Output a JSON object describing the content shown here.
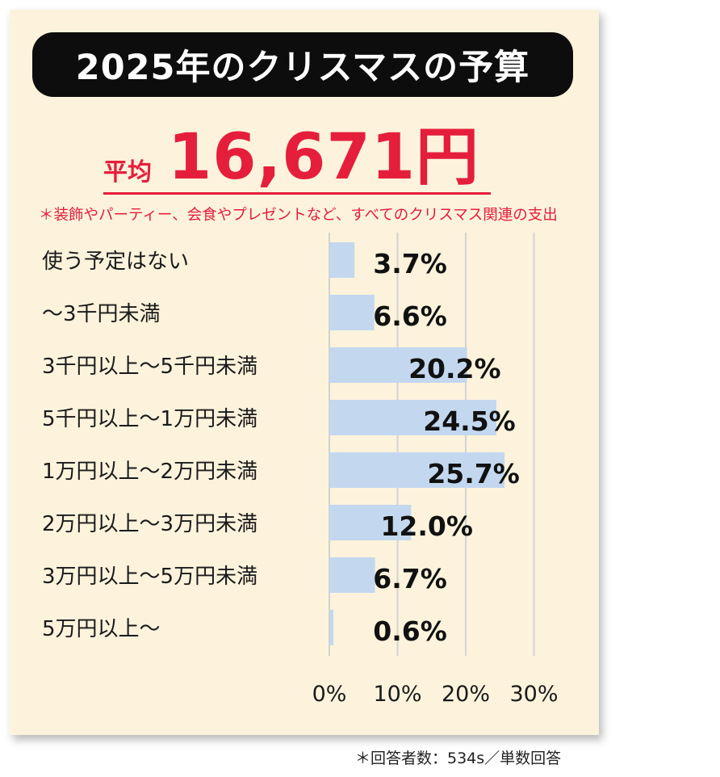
{
  "title": "2025年のクリスマスの予算",
  "average": {
    "label": "平均",
    "value": "16,671円"
  },
  "note": "＊装飾やパーティー、会食やプレゼントなど、すべてのクリスマス関連の支出",
  "footnote": "＊回答者数：534s／単数回答",
  "colors": {
    "bar": "#c3d8ef",
    "accent": "#e51e3c",
    "background": "#fdf3dc",
    "title_bg": "#0d0d0d",
    "grid": "#d2d2d2"
  },
  "chart_data": {
    "type": "bar",
    "orientation": "horizontal",
    "categories": [
      "使う予定はない",
      "～3千円未満",
      "3千円以上～5千円未満",
      "5千円以上～1万円未満",
      "1万円以上～2万円未満",
      "2万円以上～3万円未満",
      "3万円以上～5万円未満",
      "5万円以上～"
    ],
    "values": [
      3.7,
      6.6,
      20.2,
      24.5,
      25.7,
      12.0,
      6.7,
      0.6
    ],
    "data_labels": [
      "3.7%",
      "6.6%",
      "20.2%",
      "24.5%",
      "25.7%",
      "12.0%",
      "6.7%",
      "0.6%"
    ],
    "xlim": [
      0,
      30
    ],
    "x_ticks": [
      0,
      10,
      20,
      30
    ],
    "x_tick_labels": [
      "0%",
      "10%",
      "20%",
      "30%"
    ],
    "grid": true,
    "legend": "none"
  }
}
